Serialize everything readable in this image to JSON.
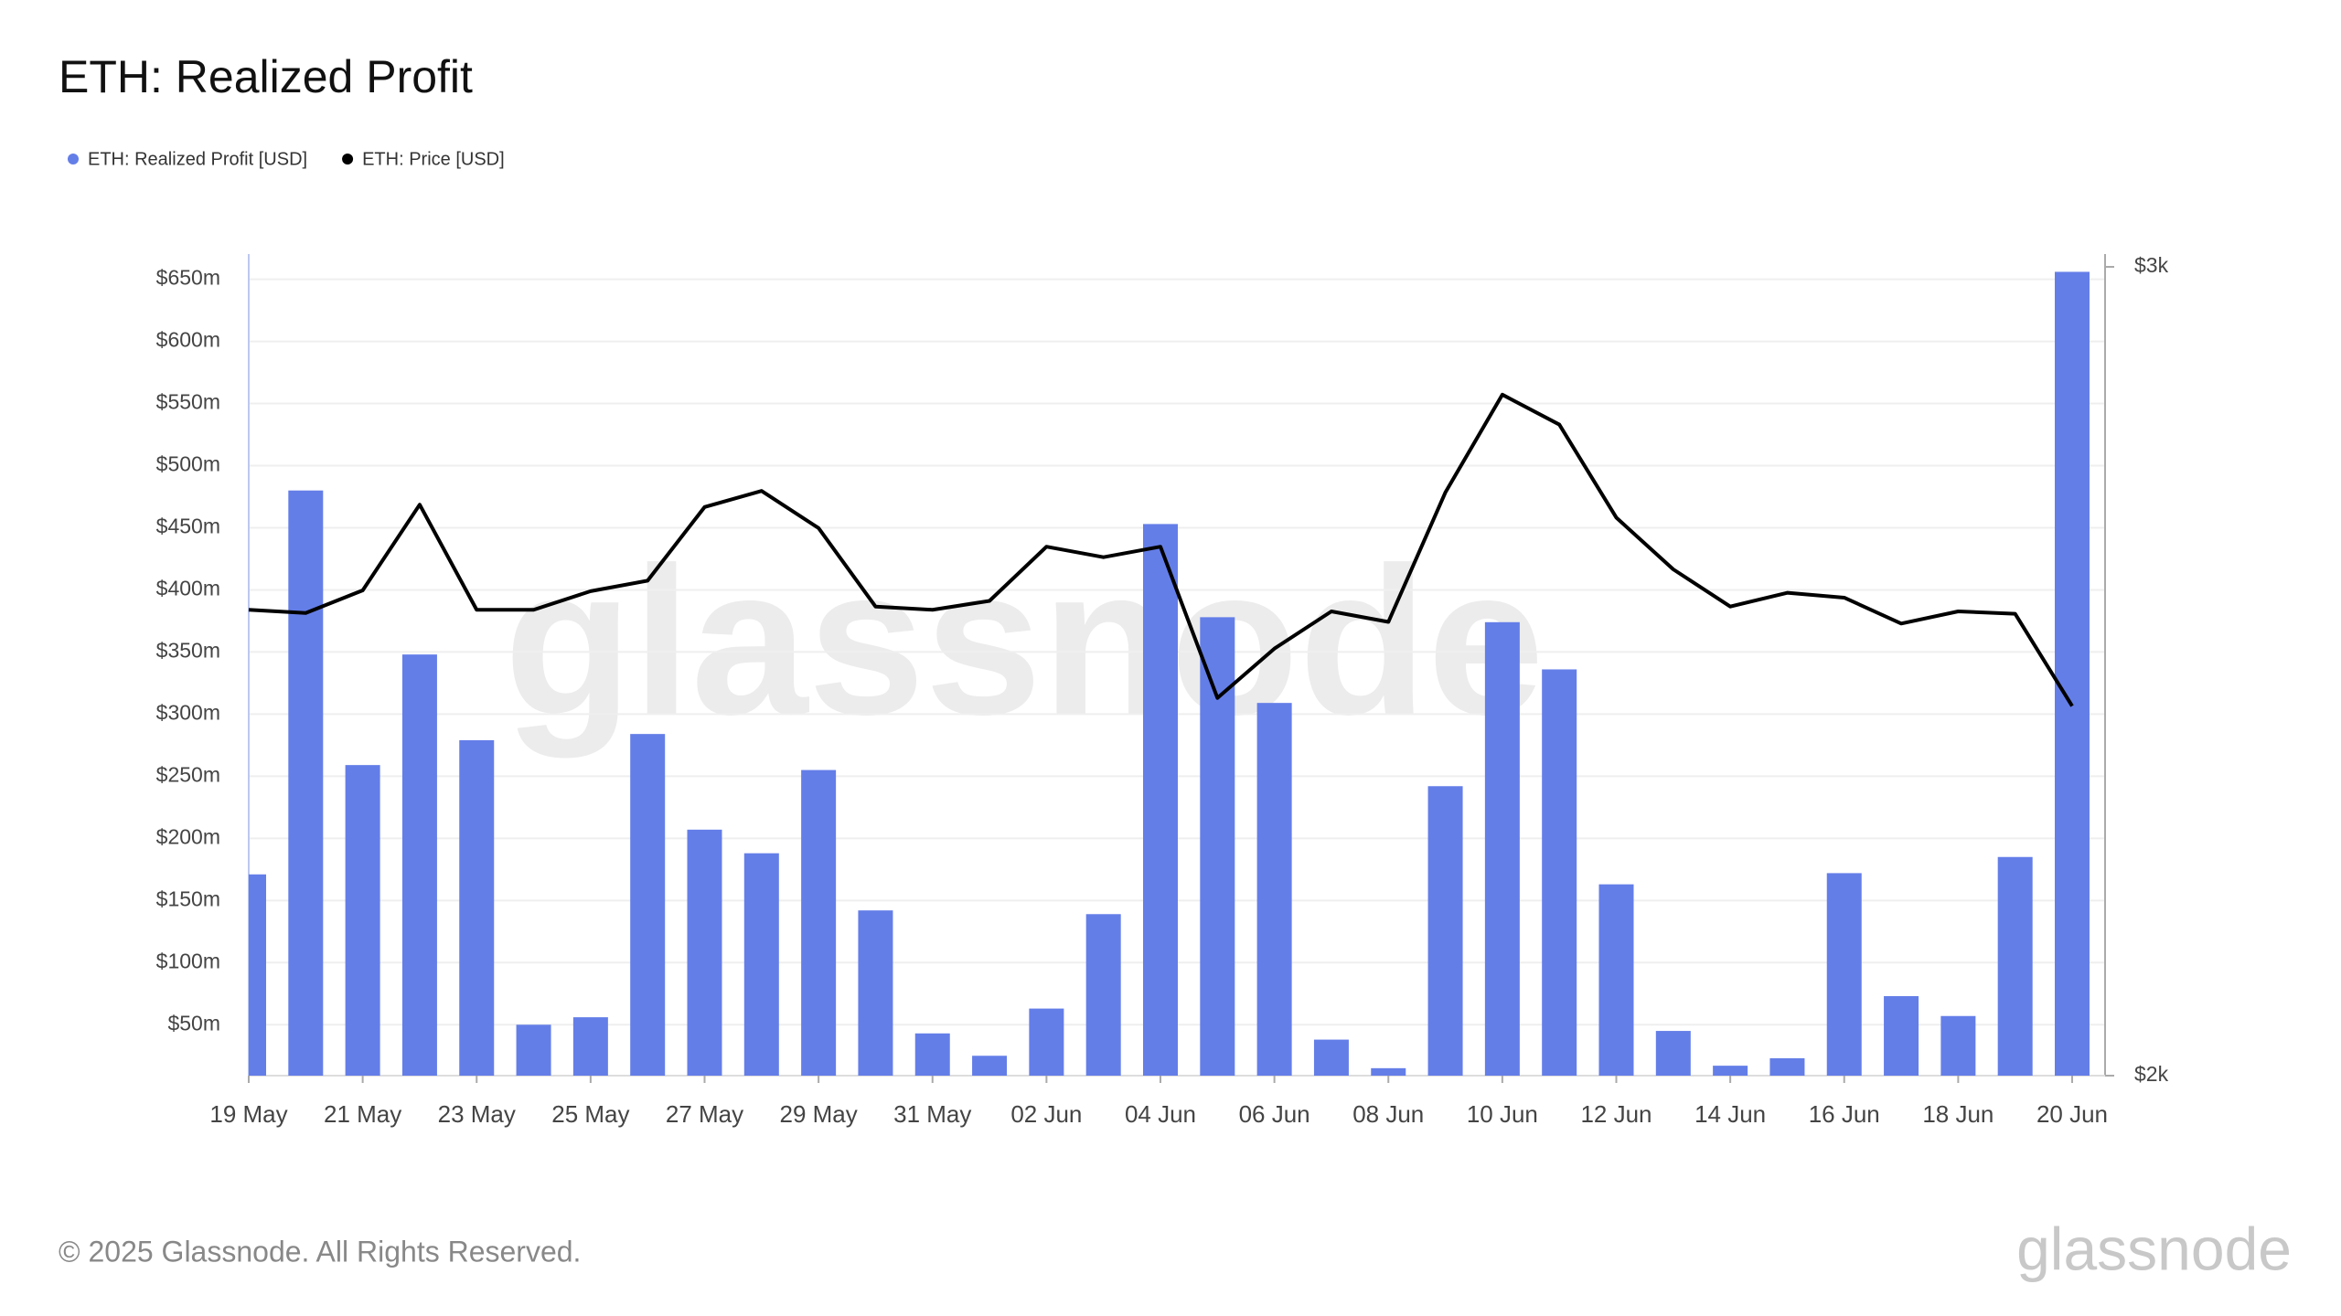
{
  "chart_data": {
    "type": "bar",
    "title": "ETH: Realized Profit",
    "categories": [
      "19 May",
      null,
      "21 May",
      null,
      "23 May",
      null,
      "25 May",
      null,
      "27 May",
      null,
      "29 May",
      null,
      "31 May",
      null,
      "02 Jun",
      null,
      "04 Jun",
      null,
      "06 Jun",
      null,
      "08 Jun",
      null,
      "10 Jun",
      null,
      "12 Jun",
      null,
      "14 Jun",
      null,
      "16 Jun",
      null,
      "18 Jun",
      null,
      "20 Jun"
    ],
    "series": [
      {
        "name": "ETH: Realized Profit [USD]",
        "type": "bar",
        "color": "#647ee8",
        "values": [
          171,
          480,
          259,
          348,
          279,
          50,
          56,
          284,
          207,
          188,
          255,
          142,
          43,
          25,
          63,
          139,
          453,
          378,
          309,
          38,
          15,
          242,
          374,
          336,
          163,
          45,
          17,
          23,
          172,
          73,
          57,
          185,
          656
        ]
      },
      {
        "name": "ETH: Price [USD]",
        "type": "line",
        "color": "#000000",
        "axis": "y2",
        "values": [
          2576,
          2572,
          2600,
          2706,
          2576,
          2576,
          2599,
          2612,
          2703,
          2723,
          2677,
          2580,
          2576,
          2587,
          2654,
          2641,
          2654,
          2467,
          2528,
          2574,
          2561,
          2721,
          2842,
          2805,
          2690,
          2626,
          2580,
          2597,
          2591,
          2559,
          2574,
          2571,
          2457
        ]
      }
    ],
    "ylim": [
      9,
      660
    ],
    "yticks": [
      {
        "value": 50,
        "label": "$50m"
      },
      {
        "value": 100,
        "label": "$100m"
      },
      {
        "value": 150,
        "label": "$150m"
      },
      {
        "value": 200,
        "label": "$200m"
      },
      {
        "value": 250,
        "label": "$250m"
      },
      {
        "value": 300,
        "label": "$300m"
      },
      {
        "value": 350,
        "label": "$350m"
      },
      {
        "value": 400,
        "label": "$400m"
      },
      {
        "value": 450,
        "label": "$450m"
      },
      {
        "value": 500,
        "label": "$500m"
      },
      {
        "value": 550,
        "label": "$550m"
      },
      {
        "value": 600,
        "label": "$600m"
      },
      {
        "value": 650,
        "label": "$650m"
      }
    ],
    "y2lim": [
      2000,
      3000
    ],
    "y2ticks": [
      {
        "value": 2000,
        "label": "$2k"
      },
      {
        "value": 3000,
        "label": "$3k"
      }
    ],
    "grid": true,
    "legend": "top-left",
    "watermark": "glassnode",
    "footer": "© 2025 Glassnode. All Rights Reserved."
  }
}
